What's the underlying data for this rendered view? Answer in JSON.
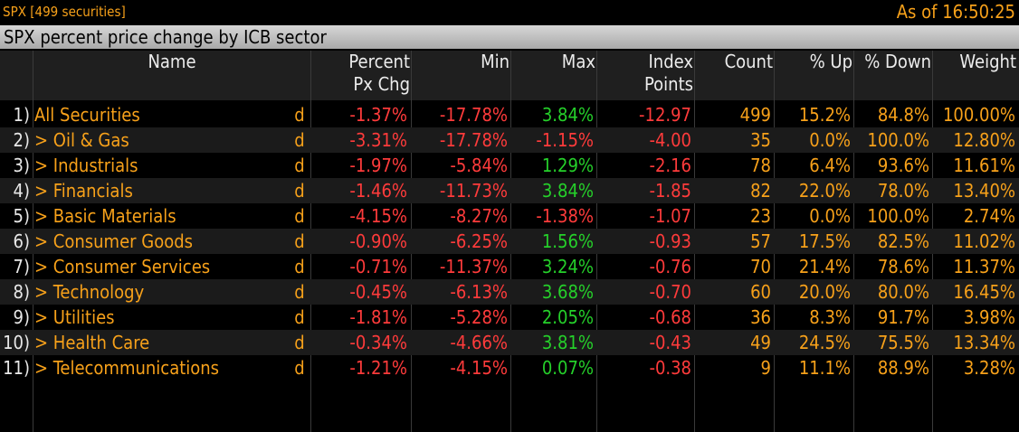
{
  "header": {
    "security_label": "SPX [499 securities]",
    "time_label": "As of 16:50:25",
    "title": "SPX percent price change by ICB sector"
  },
  "columns": {
    "name": "Name",
    "pct_line1": "Percent",
    "pct_line2": "Px Chg",
    "min": "Min",
    "max": "Max",
    "idx_line1": "Index",
    "idx_line2": "Points",
    "count": "Count",
    "up": "% Up",
    "down": "% Down",
    "weight": "Weight"
  },
  "rows": [
    {
      "idx": "1)",
      "name": "All Securities",
      "d": "d",
      "pct": "-1.37%",
      "min": "-17.78%",
      "max": "3.84%",
      "max_sign": "pos",
      "points": "-12.97",
      "count": "499",
      "up": "15.2%",
      "down": "84.8%",
      "weight": "100.00%"
    },
    {
      "idx": "2)",
      "name": "> Oil & Gas",
      "d": "d",
      "pct": "-3.31%",
      "min": "-17.78%",
      "max": "-1.15%",
      "max_sign": "neg",
      "points": "-4.00",
      "count": "35",
      "up": "0.0%",
      "down": "100.0%",
      "weight": "12.80%"
    },
    {
      "idx": "3)",
      "name": "> Industrials",
      "d": "d",
      "pct": "-1.97%",
      "min": "-5.84%",
      "max": "1.29%",
      "max_sign": "pos",
      "points": "-2.16",
      "count": "78",
      "up": "6.4%",
      "down": "93.6%",
      "weight": "11.61%"
    },
    {
      "idx": "4)",
      "name": "> Financials",
      "d": "d",
      "pct": "-1.46%",
      "min": "-11.73%",
      "max": "3.84%",
      "max_sign": "pos",
      "points": "-1.85",
      "count": "82",
      "up": "22.0%",
      "down": "78.0%",
      "weight": "13.40%"
    },
    {
      "idx": "5)",
      "name": "> Basic Materials",
      "d": "d",
      "pct": "-4.15%",
      "min": "-8.27%",
      "max": "-1.38%",
      "max_sign": "neg",
      "points": "-1.07",
      "count": "23",
      "up": "0.0%",
      "down": "100.0%",
      "weight": "2.74%"
    },
    {
      "idx": "6)",
      "name": "> Consumer Goods",
      "d": "d",
      "pct": "-0.90%",
      "min": "-6.25%",
      "max": "1.56%",
      "max_sign": "pos",
      "points": "-0.93",
      "count": "57",
      "up": "17.5%",
      "down": "82.5%",
      "weight": "11.02%"
    },
    {
      "idx": "7)",
      "name": "> Consumer Services",
      "d": "d",
      "pct": "-0.71%",
      "min": "-11.37%",
      "max": "3.24%",
      "max_sign": "pos",
      "points": "-0.76",
      "count": "70",
      "up": "21.4%",
      "down": "78.6%",
      "weight": "11.37%"
    },
    {
      "idx": "8)",
      "name": "> Technology",
      "d": "d",
      "pct": "-0.45%",
      "min": "-6.13%",
      "max": "3.68%",
      "max_sign": "pos",
      "points": "-0.70",
      "count": "60",
      "up": "20.0%",
      "down": "80.0%",
      "weight": "16.45%"
    },
    {
      "idx": "9)",
      "name": "> Utilities",
      "d": "d",
      "pct": "-1.81%",
      "min": "-5.28%",
      "max": "2.05%",
      "max_sign": "pos",
      "points": "-0.68",
      "count": "36",
      "up": "8.3%",
      "down": "91.7%",
      "weight": "3.98%"
    },
    {
      "idx": "10)",
      "name": "> Health Care",
      "d": "d",
      "pct": "-0.34%",
      "min": "-4.66%",
      "max": "3.81%",
      "max_sign": "pos",
      "points": "-0.43",
      "count": "49",
      "up": "24.5%",
      "down": "75.5%",
      "weight": "13.34%"
    },
    {
      "idx": "11)",
      "name": "> Telecommunications",
      "d": "d",
      "pct": "-1.21%",
      "min": "-4.15%",
      "max": "0.07%",
      "max_sign": "pos",
      "points": "-0.38",
      "count": "9",
      "up": "11.1%",
      "down": "88.9%",
      "weight": "3.28%"
    }
  ],
  "colors": {
    "orange": "#f7a11a",
    "negative": "#ff3b3b",
    "positive": "#25d02a",
    "header_text": "#ececec"
  }
}
